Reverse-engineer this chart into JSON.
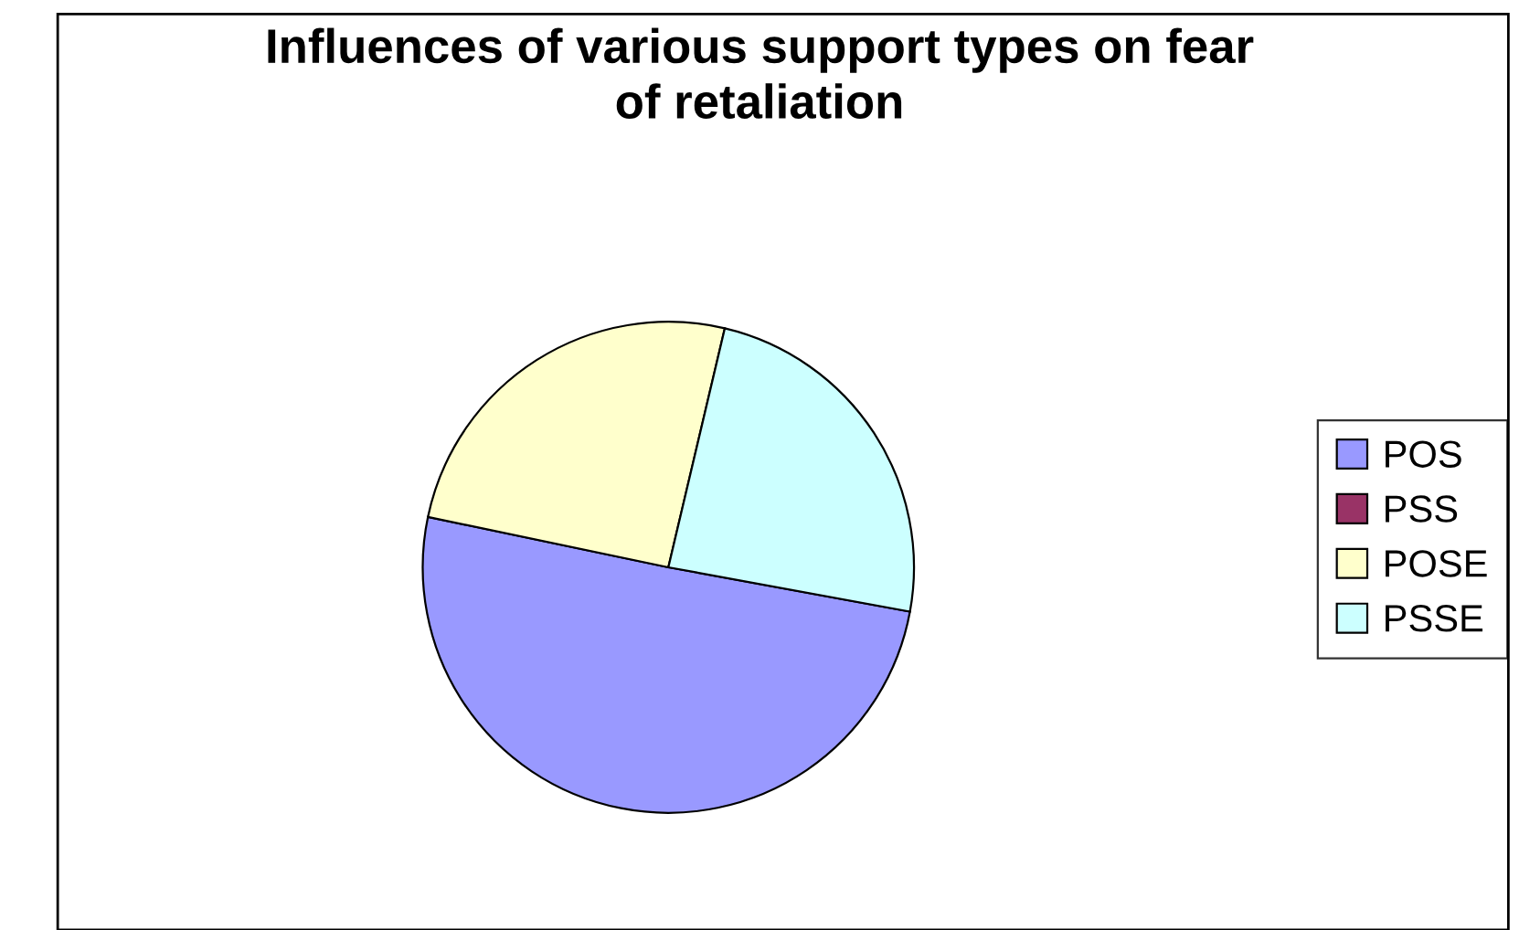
{
  "chart_data": {
    "type": "pie",
    "title": "Influences of various support types on fear\nof retaliation",
    "categories": [
      "POS",
      "PSS",
      "POSE",
      "PSSE"
    ],
    "values": [
      50.4,
      0,
      25.4,
      24.2
    ],
    "colors": [
      "#9999ff",
      "#993366",
      "#ffffcc",
      "#ccffff"
    ],
    "legend": "right"
  }
}
